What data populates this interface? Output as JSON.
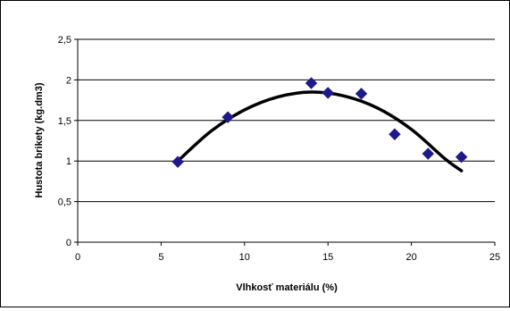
{
  "chart_data": {
    "type": "scatter",
    "title": "",
    "xlabel": "Vlhkosť materiálu (%)",
    "ylabel": "Hustota brikety (kg.dm3)",
    "xlim": [
      0,
      25
    ],
    "ylim": [
      0,
      2.5
    ],
    "x_ticks": [
      0,
      5,
      10,
      15,
      20,
      25
    ],
    "x_tick_labels": [
      "0",
      "5",
      "10",
      "15",
      "20",
      "25"
    ],
    "y_ticks": [
      0,
      0.5,
      1,
      1.5,
      2,
      2.5
    ],
    "y_tick_labels": [
      "0",
      "0,5",
      "1",
      "1,5",
      "2",
      "2,5"
    ],
    "grid": {
      "horizontal": true,
      "vertical": false
    },
    "legend": "none",
    "series": [
      {
        "marker": "diamond",
        "color": "#1f1a8c",
        "x": [
          6,
          9,
          14,
          15,
          17,
          19,
          21,
          23
        ],
        "y": [
          0.99,
          1.54,
          1.96,
          1.84,
          1.83,
          1.33,
          1.09,
          1.05
        ]
      }
    ],
    "trendline": {
      "type": "polynomial",
      "color": "#000000",
      "x_range": [
        6,
        23
      ],
      "x": [
        6,
        8,
        10,
        12,
        14,
        16,
        18,
        20,
        22,
        23
      ],
      "y": [
        1.0,
        1.37,
        1.63,
        1.79,
        1.85,
        1.8,
        1.65,
        1.39,
        1.03,
        0.88
      ]
    }
  }
}
